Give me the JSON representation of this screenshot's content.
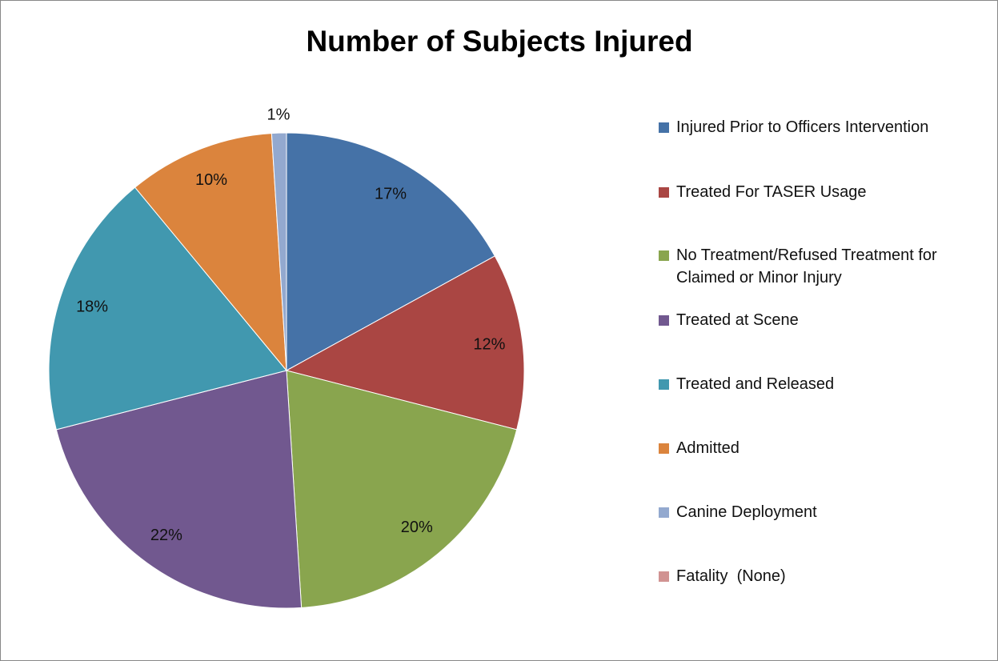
{
  "chart_data": {
    "type": "pie",
    "title": "Number of Subjects Injured",
    "categories": [
      "Injured Prior to Officers Intervention",
      "Treated For TASER Usage",
      "No Treatment/Refused Treatment for Claimed or Minor Injury",
      "Treated at Scene",
      "Treated and Released",
      "Admitted",
      "Canine Deployment",
      "Fatality  (None)"
    ],
    "values": [
      17,
      12,
      20,
      22,
      18,
      10,
      1,
      0
    ],
    "value_labels": [
      "17%",
      "12%",
      "20%",
      "22%",
      "18%",
      "10%",
      "1%",
      null
    ],
    "colors": [
      "#4572a7",
      "#aa4643",
      "#89a54e",
      "#71588f",
      "#4198af",
      "#db843d",
      "#93a9cf",
      "#d19392"
    ],
    "legend": "right"
  }
}
